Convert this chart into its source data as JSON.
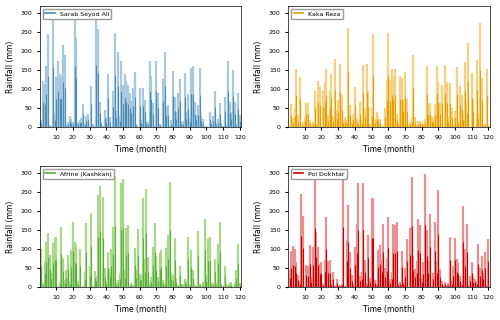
{
  "subplots": [
    {
      "label": "Sarab Seyod Ali",
      "color": "#4C8DB5",
      "light_color": "#A8C8E0",
      "ylim": [
        0,
        320
      ],
      "yticks": [
        0,
        50,
        100,
        150,
        200,
        250,
        300
      ],
      "ylabel": "Rainfall (mm)",
      "xlabel": "Time (month)"
    },
    {
      "label": "Kaka Reza",
      "color": "#E8A000",
      "light_color": "#F5D080",
      "ylim": [
        0,
        320
      ],
      "yticks": [
        0,
        50,
        100,
        150,
        200,
        250,
        300
      ],
      "ylabel": "Rainfall (mm)",
      "xlabel": "Time (month)"
    },
    {
      "label": "Afrine (Kashkan)",
      "color": "#5BB040",
      "light_color": "#A8D888",
      "ylim": [
        0,
        320
      ],
      "yticks": [
        0,
        50,
        100,
        150,
        200,
        250,
        300
      ],
      "ylabel": "Rainfall (mm)",
      "xlabel": "Time (month)"
    },
    {
      "label": "Pol Dokhtar",
      "color": "#CC0000",
      "light_color": "#E89090",
      "ylim": [
        0,
        320
      ],
      "yticks": [
        0,
        50,
        100,
        150,
        200,
        250,
        300
      ],
      "ylabel": "Rainfall (mm)",
      "xlabel": "Time (month)"
    }
  ],
  "n_points": 120,
  "x_tick_positions": [
    10,
    20,
    30,
    40,
    50,
    60,
    70,
    80,
    90,
    100,
    110,
    120
  ],
  "x_tick_labels": [
    "10",
    "20",
    "30",
    "40",
    "50",
    "60",
    "70",
    "80",
    "90",
    "100",
    "110",
    "120"
  ]
}
